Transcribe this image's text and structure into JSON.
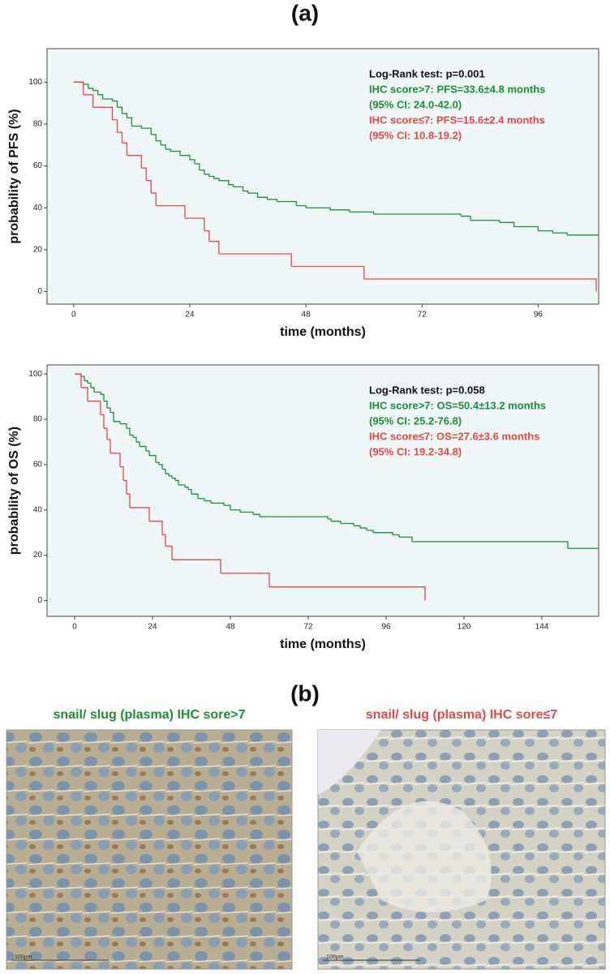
{
  "panel_a": "(a)",
  "panel_b": "(b)",
  "chart_data": [
    {
      "type": "line",
      "drawstyle": "steps-post",
      "y_label": "probability of PFS (%)",
      "x_label": "time (months)",
      "xlim": [
        -5.5,
        108.5
      ],
      "ylim": [
        -6,
        116
      ],
      "xticks": [
        0,
        24,
        48,
        72,
        96
      ],
      "yticks": [
        0,
        20,
        40,
        60,
        80,
        100
      ],
      "background": "#eef6f7",
      "annotations": [
        {
          "text": "Log-Rank test: p=0.001",
          "color": "#111111"
        },
        {
          "text": "IHC score>7: PFS=33.6±4.8 months",
          "color": "#1e8c3a"
        },
        {
          "text": "(95% CI: 24.0-42.0)",
          "color": "#1e8c3a"
        },
        {
          "text": "IHC score≤7: PFS=15.6±2.4 months",
          "color": "#e5484b"
        },
        {
          "text": "(95% CI: 10.8-19.2)",
          "color": "#e5484b"
        }
      ],
      "series": [
        {
          "color": "#1e8c3a",
          "x": [
            0,
            2,
            3,
            4,
            5,
            6,
            8,
            9,
            10,
            11,
            12,
            14,
            16,
            17,
            18,
            19,
            20,
            22,
            24,
            25,
            26,
            27,
            28,
            29,
            30,
            32,
            33,
            35,
            36,
            38,
            40,
            42,
            46,
            48,
            53,
            57,
            62,
            80,
            82,
            88,
            91,
            96,
            99,
            102,
            108.5
          ],
          "values": [
            100,
            99,
            97,
            96,
            94,
            92,
            91,
            88,
            85,
            83,
            79,
            78,
            75,
            72,
            70,
            68,
            67,
            65,
            63,
            61,
            58,
            56,
            55,
            54,
            53,
            51,
            50,
            48,
            47,
            45,
            44,
            43,
            41,
            40,
            39,
            38,
            37,
            36,
            34,
            33,
            31,
            29,
            28,
            27,
            27
          ]
        },
        {
          "color": "#e5484b",
          "x": [
            0,
            2,
            4,
            8,
            9,
            10,
            11,
            14,
            15,
            16,
            17,
            23,
            27,
            28,
            30,
            45,
            60,
            108
          ],
          "values": [
            100,
            94,
            88,
            82,
            76,
            71,
            65,
            59,
            53,
            47,
            41,
            35,
            29,
            24,
            18,
            12,
            6,
            0
          ]
        }
      ]
    },
    {
      "type": "line",
      "drawstyle": "steps-post",
      "y_label": "probability of OS (%)",
      "x_label": "time (months)",
      "xlim": [
        -8.5,
        161.5
      ],
      "ylim": [
        -7,
        104
      ],
      "xticks": [
        0,
        24,
        48,
        72,
        96,
        120,
        144
      ],
      "yticks": [
        0,
        20,
        40,
        60,
        80,
        100
      ],
      "background": "#eef6f7",
      "annotations": [
        {
          "text": "Log-Rank test: p=0.058",
          "color": "#111111"
        },
        {
          "text": "IHC score>7: OS=50.4±13.2 months",
          "color": "#1e8c3a"
        },
        {
          "text": "(95% CI: 25.2-76.8)",
          "color": "#1e8c3a"
        },
        {
          "text": "IHC score≤7: OS=27.6±3.6 months",
          "color": "#e5484b"
        },
        {
          "text": "(95% CI: 19.2-34.8)",
          "color": "#e5484b"
        }
      ],
      "series": [
        {
          "color": "#1e8c3a",
          "x": [
            0,
            2,
            3,
            4,
            5,
            6,
            8,
            9,
            10,
            11,
            12,
            14,
            16,
            17,
            18,
            19,
            20,
            22,
            23,
            25,
            26,
            27,
            28,
            29,
            30,
            31,
            32,
            34,
            35,
            36,
            38,
            40,
            42,
            46,
            48,
            51,
            55,
            57,
            78,
            79,
            82,
            86,
            88,
            90,
            92,
            98,
            100,
            104,
            152,
            161.5
          ],
          "values": [
            100,
            99,
            97,
            96,
            94,
            92,
            91,
            88,
            85,
            83,
            79,
            78,
            76,
            73,
            72,
            70,
            68,
            66,
            64,
            61,
            60,
            58,
            56,
            55,
            54,
            53,
            51,
            50,
            49,
            47,
            45,
            44,
            43,
            42,
            40,
            39,
            38,
            37,
            36,
            35,
            34,
            33,
            32,
            31,
            30,
            29,
            28,
            26,
            23,
            23
          ]
        },
        {
          "color": "#e5484b",
          "x": [
            0,
            2,
            4,
            8,
            9,
            10,
            11,
            14,
            15,
            16,
            17,
            23,
            27,
            28,
            30,
            45,
            60,
            108
          ],
          "values": [
            100,
            94,
            88,
            82,
            76,
            71,
            65,
            59,
            53,
            47,
            41,
            35,
            29,
            24,
            18,
            12,
            6,
            0
          ]
        }
      ]
    }
  ],
  "images": [
    {
      "title": "snail/ slug (plasma) IHC sore>7",
      "color": "#1e8c3a",
      "scale_bar": "100μm"
    },
    {
      "title": "snail/ slug (plasma) IHC sore≤7",
      "color": "#e5484b",
      "scale_bar": "100μm"
    }
  ]
}
